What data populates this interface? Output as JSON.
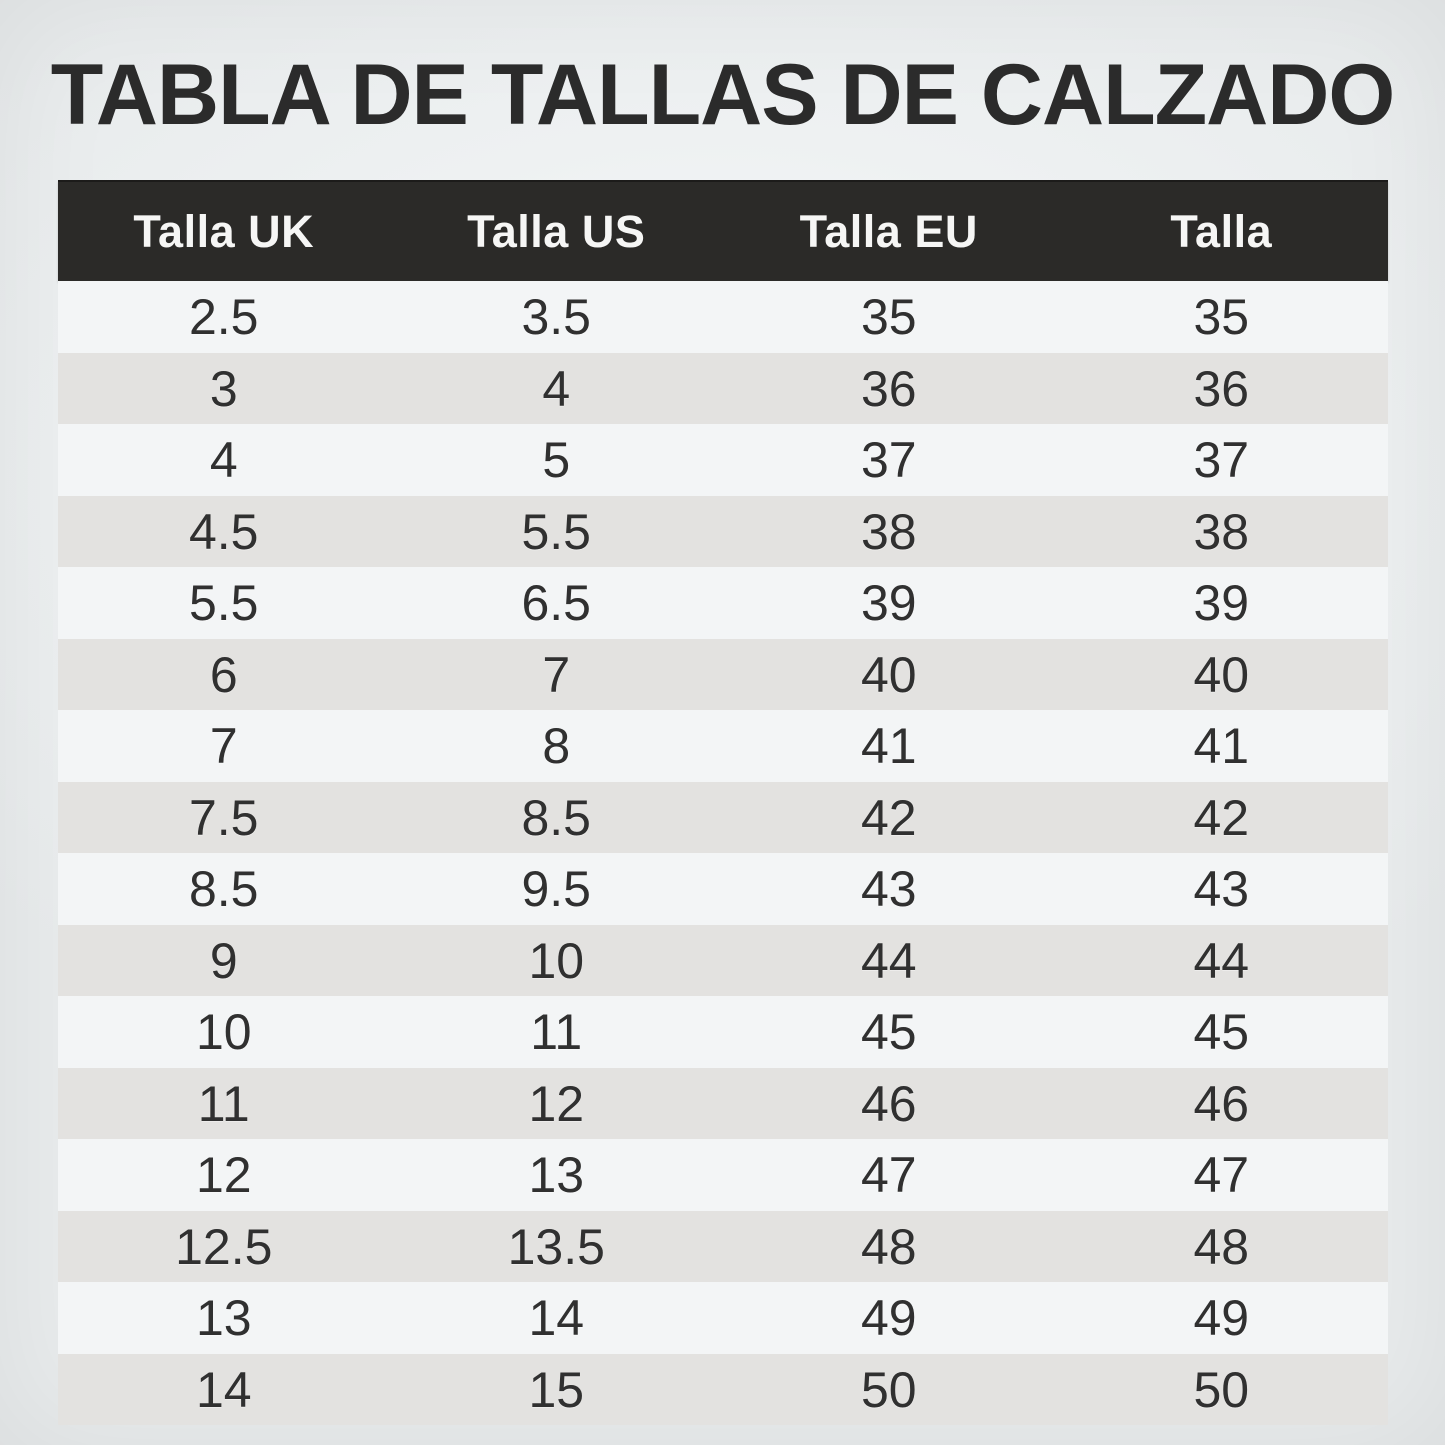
{
  "chart_data": {
    "type": "table",
    "title": "TABLA DE TALLAS DE CALZADO",
    "columns": [
      "Talla UK",
      "Talla US",
      "Talla EU",
      "Talla"
    ],
    "rows": [
      [
        "2.5",
        "3.5",
        "35",
        "35"
      ],
      [
        "3",
        "4",
        "36",
        "36"
      ],
      [
        "4",
        "5",
        "37",
        "37"
      ],
      [
        "4.5",
        "5.5",
        "38",
        "38"
      ],
      [
        "5.5",
        "6.5",
        "39",
        "39"
      ],
      [
        "6",
        "7",
        "40",
        "40"
      ],
      [
        "7",
        "8",
        "41",
        "41"
      ],
      [
        "7.5",
        "8.5",
        "42",
        "42"
      ],
      [
        "8.5",
        "9.5",
        "43",
        "43"
      ],
      [
        "9",
        "10",
        "44",
        "44"
      ],
      [
        "10",
        "11",
        "45",
        "45"
      ],
      [
        "11",
        "12",
        "46",
        "46"
      ],
      [
        "12",
        "13",
        "47",
        "47"
      ],
      [
        "12.5",
        "13.5",
        "48",
        "48"
      ],
      [
        "13",
        "14",
        "49",
        "49"
      ],
      [
        "14",
        "15",
        "50",
        "50"
      ]
    ]
  },
  "colors": {
    "page_bg": "#edf0f1",
    "header_bg": "#2b2a28",
    "header_text": "#f6f6f5",
    "row_odd": "#f3f5f6",
    "row_even": "#e3e2e0",
    "cell_text": "#303030",
    "title_color": "#2b2b2b"
  }
}
